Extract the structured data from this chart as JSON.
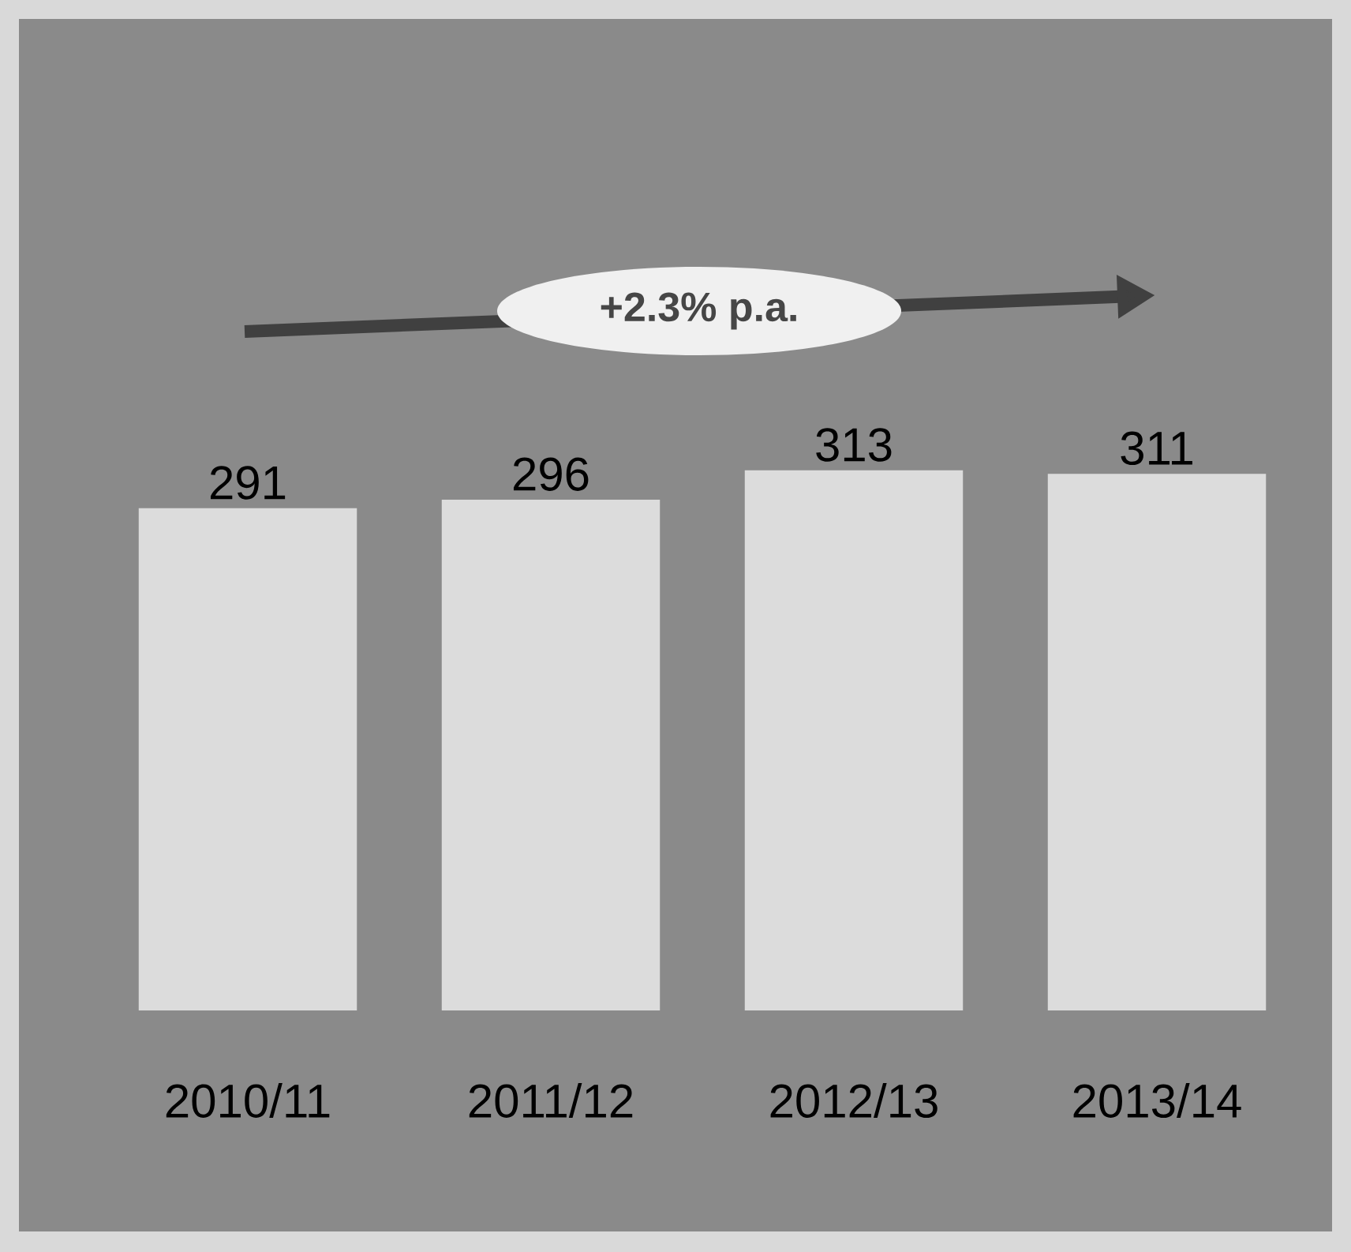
{
  "chart_data": {
    "type": "bar",
    "categories": [
      "2010/11",
      "2011/12",
      "2012/13",
      "2013/14"
    ],
    "values": [
      291,
      296,
      313,
      311
    ],
    "color": "#dcdcdc",
    "data_labels": true,
    "annotations": [
      "+2.3% p.a."
    ]
  }
}
